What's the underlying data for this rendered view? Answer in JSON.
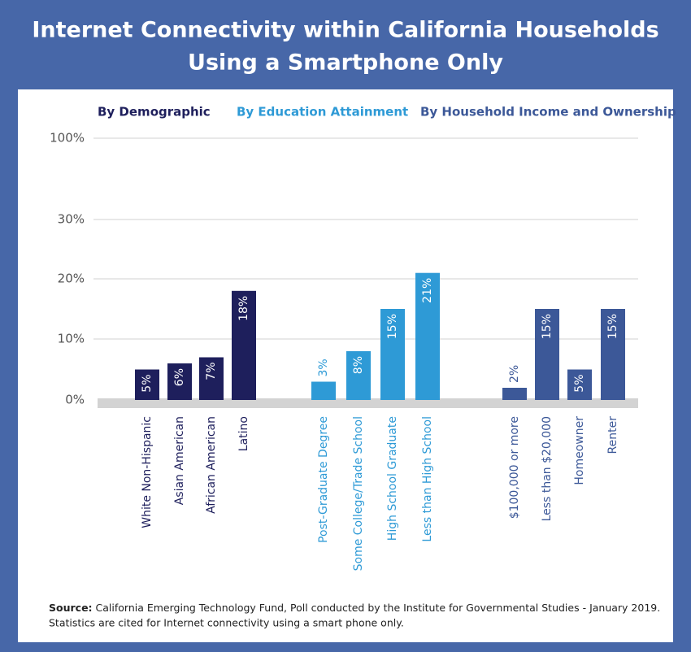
{
  "chart_data": {
    "type": "bar",
    "title": [
      "Internet Connectivity within California Households",
      "Using a Smartphone Only"
    ],
    "ylim": [
      0,
      100
    ],
    "yticks": [
      {
        "value": 0,
        "label": "0%"
      },
      {
        "value": 10,
        "label": "10%"
      },
      {
        "value": 20,
        "label": "20%"
      },
      {
        "value": 30,
        "label": "30%"
      },
      {
        "value": 100,
        "label": "100%"
      }
    ],
    "grid": true,
    "groups": [
      {
        "name": "By Demographic",
        "color": "#1e1f5c",
        "categories": [
          "White Non-Hispanic",
          "Asian American",
          "African American",
          "Latino"
        ],
        "values": [
          5,
          6,
          7,
          18
        ],
        "value_labels": [
          "5%",
          "6%",
          "7%",
          "18%"
        ]
      },
      {
        "name": "By Education Attainment",
        "color": "#2e9ad6",
        "categories": [
          "Post-Graduate Degree",
          "Some College/Trade School",
          "High School Graduate",
          "Less than High School"
        ],
        "values": [
          3,
          8,
          15,
          21
        ],
        "value_labels": [
          "3%",
          "8%",
          "15%",
          "21%"
        ]
      },
      {
        "name": "By Household Income and Ownership",
        "color": "#3c5898",
        "categories": [
          "$100,000 or more",
          "Less than $20,000",
          "Homeowner",
          "Renter"
        ],
        "values": [
          2,
          15,
          5,
          15
        ],
        "value_labels": [
          "2%",
          "15%",
          "5%",
          "15%"
        ]
      }
    ],
    "source": {
      "label": "Source:",
      "text": "California Emerging Technology Fund, Poll conducted by the Institute for Governmental Studies - January 2019."
    },
    "note": "Statistics are cited for Internet connectivity using a smart phone only."
  }
}
